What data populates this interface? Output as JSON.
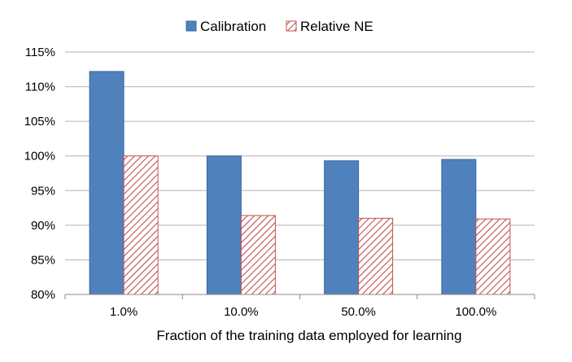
{
  "chart_data": {
    "type": "bar",
    "title": "",
    "xlabel": "Fraction of the training data employed for learning",
    "ylabel": "",
    "categories": [
      "1.0%",
      "10.0%",
      "50.0%",
      "100.0%"
    ],
    "series": [
      {
        "name": "Calibration",
        "values": [
          112.2,
          100.0,
          99.3,
          99.5
        ],
        "color": "#4f81bd",
        "fill": "solid"
      },
      {
        "name": "Relative NE",
        "values": [
          100.0,
          91.4,
          91.0,
          90.9
        ],
        "color": "#c0504d",
        "fill": "diagonal-hatch"
      }
    ],
    "ylim": [
      80,
      115
    ],
    "yticks": [
      80,
      85,
      90,
      95,
      100,
      105,
      110,
      115
    ],
    "ytick_labels": [
      "80%",
      "85%",
      "90%",
      "95%",
      "100%",
      "105%",
      "110%",
      "115%"
    ],
    "grid": "horizontal",
    "legend_position": "top-center"
  }
}
